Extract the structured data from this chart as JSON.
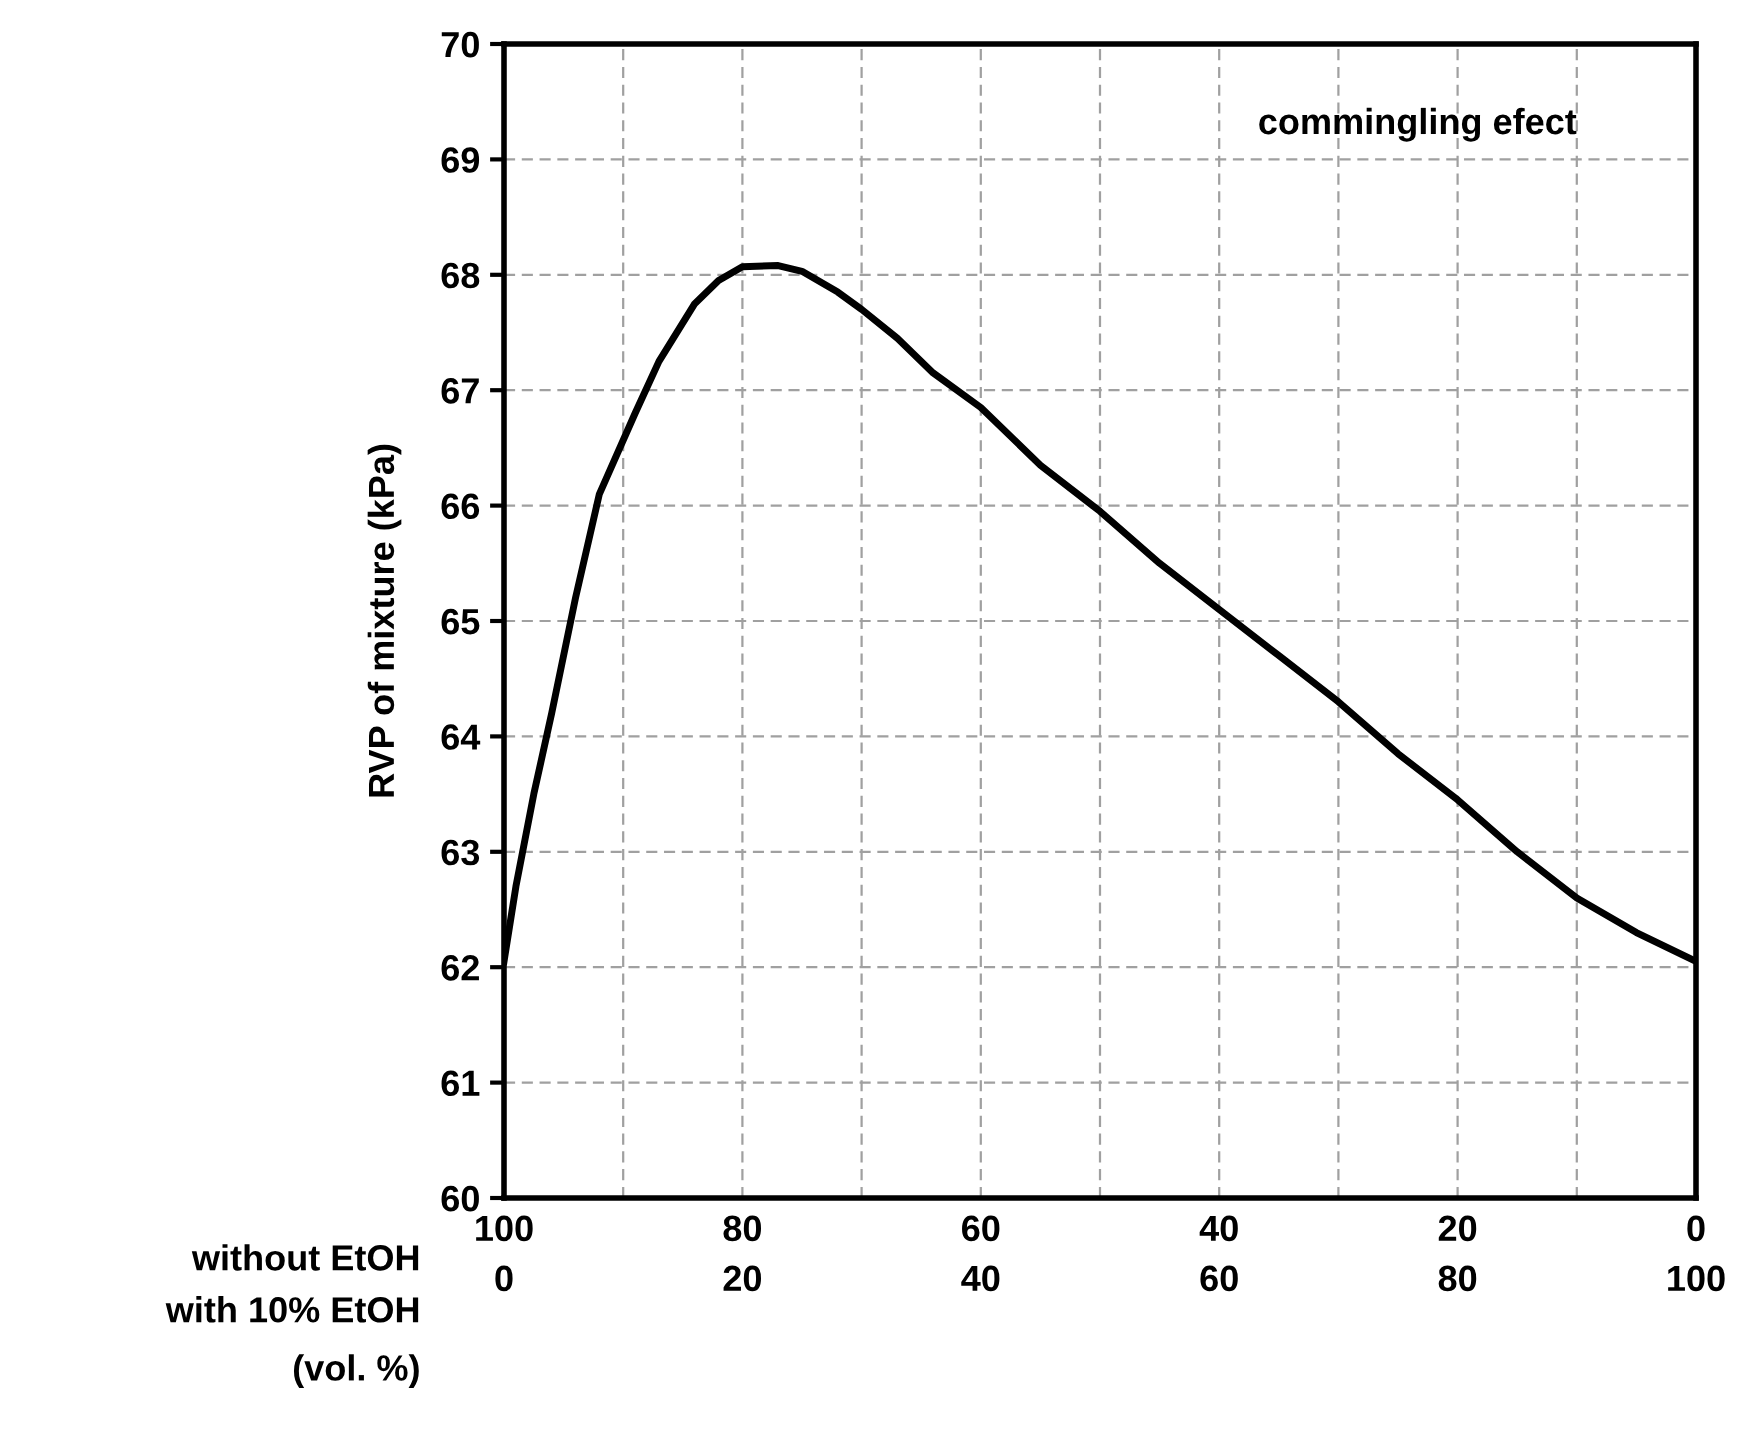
{
  "chart_data": {
    "type": "line",
    "ylabel": "RVP of mixture (kPa)",
    "xlabel": "with 10% EtOH",
    "x2label": "without EtOH",
    "annotations": [
      "commingling efect",
      "(vol. %)"
    ],
    "x": [
      0,
      1,
      2.5,
      4,
      6,
      8,
      11,
      13,
      16,
      18,
      20,
      23,
      25,
      28,
      30,
      33,
      36,
      40,
      45,
      50,
      55,
      60,
      65,
      70,
      75,
      80,
      85,
      90,
      95,
      100
    ],
    "series": [
      {
        "color": "#000000",
        "values": [
          62.05,
          62.7,
          63.5,
          64.2,
          65.2,
          66.1,
          66.8,
          67.25,
          67.75,
          67.95,
          68.07,
          68.08,
          68.03,
          67.85,
          67.7,
          67.45,
          67.15,
          66.85,
          66.35,
          65.95,
          65.5,
          65.1,
          64.7,
          64.3,
          63.85,
          63.45,
          63.0,
          62.6,
          62.3,
          62.05
        ]
      }
    ],
    "xlim": [
      0,
      100
    ],
    "xticks": [
      0,
      {
        "value": 10,
        "label": null
      },
      20,
      {
        "value": 30,
        "label": null
      },
      40,
      {
        "value": 50,
        "label": null
      },
      60,
      {
        "value": 70,
        "label": null
      },
      80,
      {
        "value": 90,
        "label": null
      },
      100
    ],
    "x2lim": [
      100,
      0
    ],
    "x2ticks": [
      100,
      80,
      60,
      40,
      20,
      0
    ],
    "ylim": [
      60,
      70
    ],
    "yticks": [
      60,
      61,
      62,
      63,
      64,
      65,
      66,
      67,
      68,
      69,
      70
    ],
    "grid": true,
    "marker": "none",
    "line_style": "solid",
    "legend": false
  }
}
